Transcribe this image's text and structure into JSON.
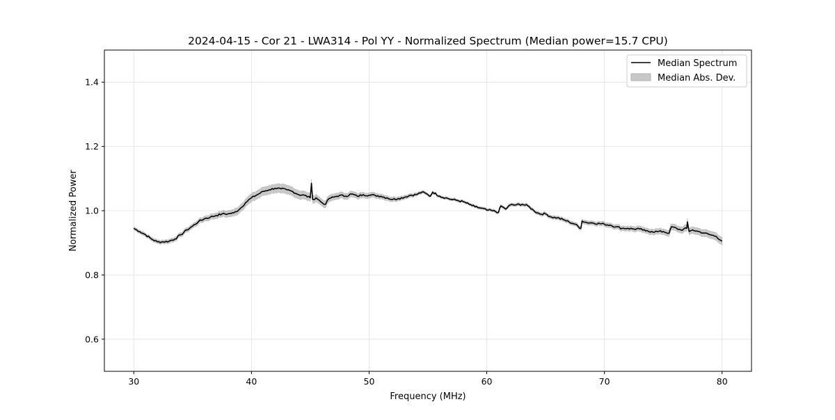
{
  "chart_data": {
    "type": "line",
    "title": "2024-04-15 - Cor 21 - LWA314 - Pol YY - Normalized Spectrum (Median power=15.7 CPU)",
    "xlabel": "Frequency (MHz)",
    "ylabel": "Normalized Power",
    "xlim": [
      27.5,
      82.5
    ],
    "ylim": [
      0.5,
      1.5
    ],
    "xticks": [
      30,
      40,
      50,
      60,
      70,
      80
    ],
    "xtick_labels": [
      "30",
      "40",
      "50",
      "60",
      "70",
      "80"
    ],
    "yticks": [
      0.6,
      0.8,
      1.0,
      1.2,
      1.4
    ],
    "ytick_labels": [
      "0.6",
      "0.8",
      "1.0",
      "1.2",
      "1.4"
    ],
    "grid": true,
    "legend_position": "top-right",
    "legend": [
      "Median Spectrum",
      "Median Abs. Dev."
    ],
    "series": [
      {
        "name": "Median Spectrum",
        "color": "#000000",
        "x": [
          30,
          30.5,
          31,
          31.5,
          32,
          32.5,
          33,
          33.5,
          34,
          34.5,
          35,
          35.5,
          36,
          36.5,
          37,
          37.5,
          38,
          38.5,
          39,
          39.5,
          40,
          40.5,
          41,
          41.5,
          42,
          42.5,
          43,
          43.5,
          44,
          44.5,
          45,
          45.1,
          45.2,
          45.5,
          46,
          46.3,
          46.6,
          47,
          47.5,
          48,
          48.5,
          49,
          49.5,
          50,
          50.5,
          51,
          51.5,
          52,
          52.5,
          53,
          53.5,
          54,
          54.5,
          55,
          55.2,
          55.4,
          56,
          56.5,
          57,
          57.5,
          58,
          58.5,
          59,
          59.5,
          60,
          60.5,
          61,
          61.2,
          61.6,
          62,
          62.5,
          63,
          63.5,
          64,
          64.5,
          65,
          65.5,
          66,
          66.5,
          67,
          67.5,
          68,
          68.1,
          68.5,
          69,
          70,
          70.5,
          71,
          71.5,
          72,
          72.5,
          73,
          73.5,
          74,
          74.5,
          75,
          75.5,
          75.7,
          76.5,
          77,
          77.05,
          77.2,
          77.5,
          78,
          78.5,
          79,
          79.5,
          80
        ],
        "y": [
          0.945,
          0.935,
          0.925,
          0.912,
          0.903,
          0.903,
          0.905,
          0.912,
          0.925,
          0.94,
          0.952,
          0.966,
          0.975,
          0.98,
          0.985,
          0.99,
          0.99,
          0.993,
          1.005,
          1.025,
          1.04,
          1.05,
          1.06,
          1.065,
          1.07,
          1.068,
          1.065,
          1.06,
          1.05,
          1.048,
          1.04,
          1.085,
          1.035,
          1.04,
          1.025,
          1.02,
          1.038,
          1.042,
          1.048,
          1.045,
          1.052,
          1.045,
          1.05,
          1.048,
          1.048,
          1.045,
          1.04,
          1.035,
          1.038,
          1.042,
          1.048,
          1.05,
          1.058,
          1.05,
          1.045,
          1.058,
          1.045,
          1.04,
          1.035,
          1.032,
          1.028,
          1.02,
          1.012,
          1.008,
          1.002,
          1.0,
          0.995,
          1.015,
          1.005,
          1.018,
          1.018,
          1.02,
          1.015,
          1.0,
          0.99,
          0.99,
          0.98,
          0.978,
          0.972,
          0.965,
          0.958,
          0.945,
          0.968,
          0.963,
          0.962,
          0.958,
          0.955,
          0.95,
          0.945,
          0.945,
          0.943,
          0.943,
          0.937,
          0.935,
          0.935,
          0.935,
          0.93,
          0.95,
          0.94,
          0.945,
          0.965,
          0.935,
          0.94,
          0.935,
          0.93,
          0.925,
          0.92,
          0.905
        ]
      },
      {
        "name": "Median Abs. Dev.",
        "color": "#c8c8c8",
        "type": "band",
        "x": [
          30,
          35,
          38,
          40,
          43,
          47,
          52,
          55,
          60,
          68,
          75,
          80
        ],
        "halfwidth": [
          0.005,
          0.007,
          0.01,
          0.013,
          0.014,
          0.01,
          0.007,
          0.004,
          0.004,
          0.006,
          0.009,
          0.012
        ]
      }
    ]
  }
}
